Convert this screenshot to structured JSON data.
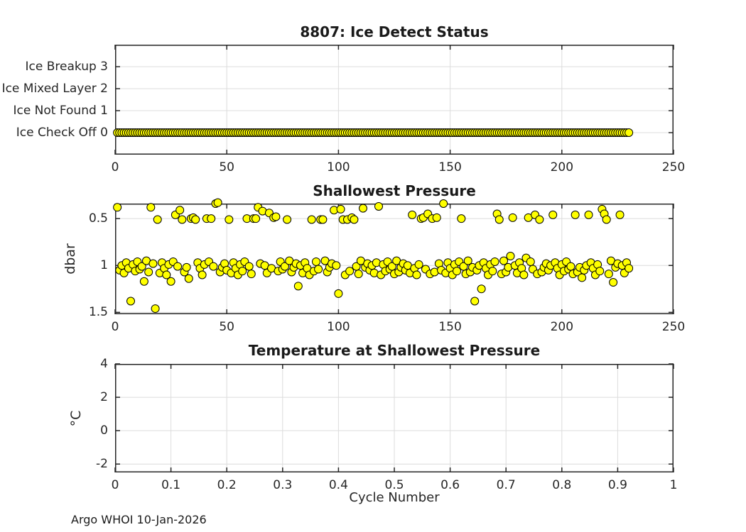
{
  "figure": {
    "footer": "Argo WHOI 10-Jan-2026",
    "background": "#ffffff",
    "text_color": "#262626",
    "grid_color": "#dcdcdc",
    "axis_color": "#262626",
    "marker": {
      "fill": "#ffff00",
      "stroke": "#000000",
      "radius": 5.5
    }
  },
  "chart_data": [
    {
      "type": "scatter",
      "title": "8807: Ice Detect Status",
      "xlabel": "",
      "ylabel": "",
      "xlim": [
        0,
        250
      ],
      "ylim": [
        -1,
        4
      ],
      "y_dir": "up",
      "grid": true,
      "xticks": {
        "values": [
          0,
          50,
          100,
          150,
          200,
          250
        ],
        "labels": [
          "0",
          "50",
          "100",
          "150",
          "200",
          "250"
        ]
      },
      "yticks": {
        "values": [
          3,
          2,
          1,
          0
        ],
        "labels": [
          "Ice Breakup 3",
          "Ice Mixed Layer 2",
          "Ice Not Found 1",
          "Ice Check Off 0"
        ]
      },
      "grid_x": [
        50,
        100,
        150,
        200
      ],
      "grid_y": [
        0,
        1,
        2,
        3
      ],
      "series": {
        "x_from": 1,
        "x_to": 230,
        "y_const": 0
      }
    },
    {
      "type": "scatter",
      "title": "Shallowest Pressure",
      "xlabel": "",
      "ylabel": "dbar",
      "xlim": [
        0,
        250
      ],
      "ylim": [
        0.34,
        1.52
      ],
      "y_dir": "down",
      "grid": true,
      "xticks": {
        "values": [
          0,
          50,
          100,
          150,
          200,
          250
        ],
        "labels": [
          "0",
          "50",
          "100",
          "150",
          "200",
          "250"
        ]
      },
      "yticks": {
        "values": [
          0.5,
          1,
          1.5
        ],
        "labels": [
          "0.5",
          "1",
          "1.5"
        ]
      },
      "grid_x": [
        50,
        100,
        150,
        200
      ],
      "grid_y": [
        0.5,
        1,
        1.5
      ],
      "series": {
        "x_from": 1,
        "y": [
          0.38,
          1.05,
          1.0,
          1.08,
          0.97,
          1.03,
          1.38,
          0.99,
          1.06,
          0.96,
          1.04,
          1.01,
          1.17,
          0.95,
          1.07,
          0.38,
          0.98,
          1.46,
          0.51,
          1.08,
          0.97,
          1.03,
          1.1,
          0.99,
          1.17,
          0.96,
          0.46,
          1.01,
          0.41,
          0.51,
          1.07,
          1.02,
          1.14,
          0.5,
          0.49,
          0.51,
          0.97,
          1.03,
          1.1,
          0.99,
          0.5,
          0.96,
          0.5,
          1.01,
          0.34,
          0.33,
          1.07,
          1.02,
          0.98,
          1.05,
          0.51,
          1.08,
          0.97,
          1.03,
          1.1,
          0.99,
          1.06,
          0.96,
          0.5,
          1.01,
          1.09,
          0.5,
          0.5,
          0.38,
          0.98,
          0.42,
          1.0,
          1.08,
          0.44,
          1.03,
          0.49,
          0.48,
          1.06,
          0.96,
          1.04,
          1.01,
          0.51,
          0.95,
          1.07,
          1.02,
          0.98,
          1.22,
          1.0,
          1.08,
          0.97,
          1.03,
          1.1,
          0.51,
          1.06,
          0.96,
          1.04,
          0.51,
          0.51,
          0.95,
          1.07,
          1.02,
          0.98,
          0.41,
          1.0,
          1.3,
          0.4,
          0.51,
          1.1,
          0.51,
          1.06,
          0.49,
          0.51,
          1.01,
          1.09,
          0.95,
          0.39,
          1.02,
          0.98,
          1.05,
          1.0,
          1.08,
          0.97,
          0.37,
          1.1,
          0.99,
          1.06,
          0.96,
          1.04,
          1.01,
          1.09,
          0.95,
          1.07,
          1.02,
          0.98,
          1.05,
          1.0,
          1.08,
          0.46,
          1.03,
          1.1,
          0.99,
          0.5,
          0.49,
          1.04,
          0.45,
          1.09,
          0.5,
          1.07,
          0.49,
          0.98,
          1.05,
          0.34,
          1.08,
          0.97,
          1.03,
          1.1,
          0.99,
          1.06,
          0.96,
          0.5,
          1.01,
          1.09,
          0.95,
          1.07,
          1.02,
          1.38,
          1.05,
          1.0,
          1.25,
          0.97,
          1.03,
          1.1,
          0.99,
          1.06,
          0.96,
          0.45,
          0.51,
          1.09,
          0.95,
          1.07,
          1.02,
          0.9,
          0.49,
          1.0,
          1.08,
          0.97,
          1.03,
          1.1,
          0.92,
          0.49,
          0.96,
          1.04,
          0.46,
          1.09,
          0.51,
          1.07,
          1.02,
          0.98,
          1.05,
          1.0,
          0.46,
          0.97,
          1.03,
          1.1,
          0.99,
          1.06,
          0.96,
          1.04,
          1.01,
          1.09,
          0.46,
          1.07,
          1.02,
          1.13,
          1.05,
          1.0,
          0.46,
          0.97,
          1.03,
          1.1,
          0.99,
          1.06,
          0.4,
          0.45,
          0.51,
          1.09,
          0.95,
          1.18,
          1.02,
          0.98,
          0.46,
          1.0,
          1.08,
          0.97,
          1.03
        ]
      }
    },
    {
      "type": "scatter",
      "title": "Temperature at Shallowest Pressure",
      "xlabel": "Cycle Number",
      "ylabel": "°C",
      "xlim": [
        0,
        1
      ],
      "ylim": [
        -2.5,
        4
      ],
      "y_dir": "up",
      "grid": true,
      "xticks": {
        "values": [
          0,
          0.1,
          0.2,
          0.3,
          0.4,
          0.5,
          0.6,
          0.7,
          0.8,
          0.9,
          1
        ],
        "labels": [
          "0",
          "0.1",
          "0.2",
          "0.3",
          "0.4",
          "0.5",
          "0.6",
          "0.7",
          "0.8",
          "0.9",
          "1"
        ]
      },
      "yticks": {
        "values": [
          4,
          2,
          0,
          -2
        ],
        "labels": [
          "4",
          "2",
          "0",
          "-2"
        ]
      },
      "grid_x": [
        0.1,
        0.2,
        0.3,
        0.4,
        0.5,
        0.6,
        0.7,
        0.8,
        0.9
      ],
      "grid_y": [
        -2,
        0,
        2
      ],
      "series": {
        "points": []
      }
    }
  ]
}
